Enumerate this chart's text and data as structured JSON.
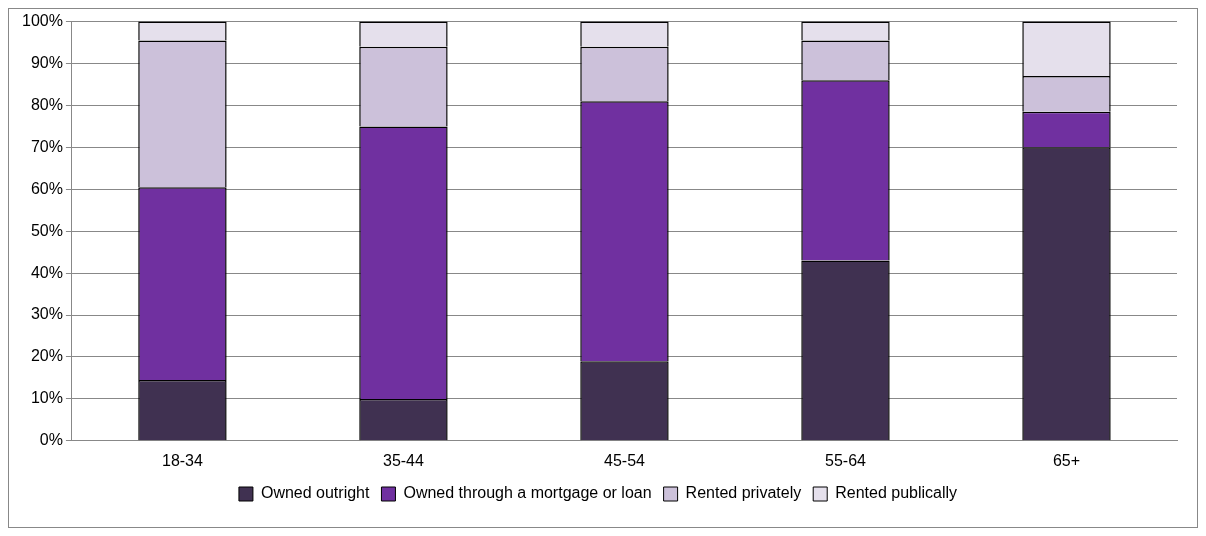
{
  "chart_data": {
    "type": "bar",
    "stacked": true,
    "categories": [
      "18-34",
      "35-44",
      "45-54",
      "55-64",
      "65+"
    ],
    "series": [
      {
        "name": "Owned outright",
        "color": "#403151",
        "values": [
          14.5,
          10,
          19,
          43,
          70
        ]
      },
      {
        "name": "Owned through a mortgage or loan",
        "color": "#7030a0",
        "values": [
          46,
          65,
          62,
          43,
          8.5
        ]
      },
      {
        "name": "Rented privately",
        "color": "#ccc1da",
        "values": [
          35,
          19,
          13,
          9.5,
          8.5
        ]
      },
      {
        "name": "Rented publically",
        "color": "#e5e0ec",
        "values": [
          4.5,
          6,
          6,
          4.5,
          13
        ]
      }
    ],
    "ylim": [
      0,
      100
    ],
    "yticks": [
      {
        "value": 0,
        "label": "0%"
      },
      {
        "value": 10,
        "label": "10%"
      },
      {
        "value": 20,
        "label": "20%"
      },
      {
        "value": 30,
        "label": "30%"
      },
      {
        "value": 40,
        "label": "40%"
      },
      {
        "value": 50,
        "label": "50%"
      },
      {
        "value": 60,
        "label": "60%"
      },
      {
        "value": 70,
        "label": "70%"
      },
      {
        "value": 80,
        "label": "80%"
      },
      {
        "value": 90,
        "label": "90%"
      },
      {
        "value": 100,
        "label": "100%"
      }
    ],
    "grid": "y",
    "legend": "bottom"
  }
}
